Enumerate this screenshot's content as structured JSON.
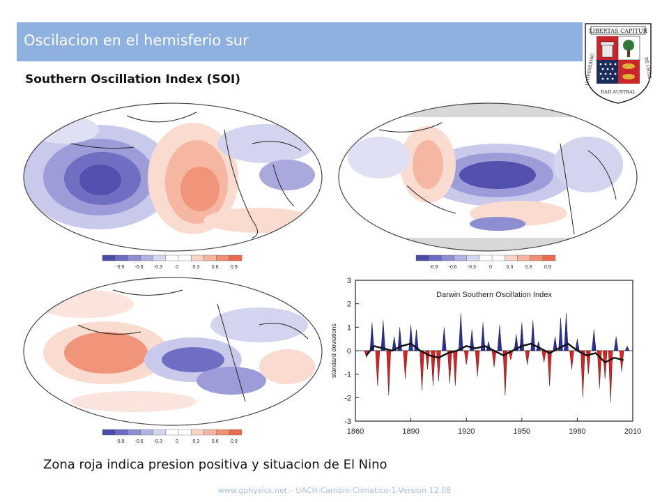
{
  "slide": {
    "title": "Oscilacion en el hemisferio sur",
    "subtitle": "Southern Oscillation Index (SOI)",
    "caption": "Zona roja indica presion positiva y situacion de El Nino",
    "footer": "www.gphysics.net – UACH-Cambio-Climatico-1-Version 12.08"
  },
  "logo": {
    "motto": "LIBERTAS CAPITUR",
    "ring_left": "UNIVERSIDAD",
    "ring_bottom": "DAD AUSTRAL",
    "ring_right": "DE CHILE",
    "colors": {
      "red": "#c8262b",
      "navy": "#1d2a5c",
      "green": "#2f7a3a",
      "gold": "#e0b23a"
    }
  },
  "colorbar": {
    "labels": [
      "-0.9",
      "-0.6",
      "-0.3",
      "0",
      "0.3",
      "0.6",
      "0.9"
    ],
    "colors": [
      "#4a4aa8",
      "#6b6bc0",
      "#8d8dd2",
      "#b2b2e2",
      "#d6d6f0",
      "#ffffff",
      "#ffffff",
      "#f9d3c4",
      "#f5b3a0",
      "#ef8f74",
      "#e86a4e"
    ]
  },
  "maps": [
    {
      "id": "map-correlation-1",
      "pattern": "west-blue-east-red"
    },
    {
      "id": "map-correlation-2",
      "pattern": "central-pacific-blue"
    },
    {
      "id": "map-correlation-3",
      "pattern": "mixed-red-blue"
    }
  ],
  "chart_data": {
    "type": "bar",
    "title": "Darwin Southern Oscillation Index",
    "ylabel": "standard deviations",
    "xlabel": "",
    "xlim": [
      1860,
      2010
    ],
    "ylim": [
      -3,
      3
    ],
    "xticks": [
      "1860",
      "1890",
      "1920",
      "1950",
      "1980",
      "2010"
    ],
    "yticks": [
      "3",
      "2",
      "1",
      "0",
      "-1",
      "-2",
      "-3"
    ],
    "colors": {
      "positive": "#2b2f9e",
      "negative": "#e02020",
      "smooth": "#111111"
    },
    "series": [
      {
        "name": "",
        "x": [
          1866,
          1869,
          1872,
          1875,
          1878,
          1881,
          1884,
          1887,
          1890,
          1893,
          1896,
          1899,
          1902,
          1905,
          1908,
          1911,
          1914,
          1917,
          1920,
          1923,
          1926,
          1929,
          1932,
          1935,
          1938,
          1941,
          1944,
          1947,
          1950,
          1953,
          1956,
          1959,
          1962,
          1965,
          1968,
          1971,
          1974,
          1977,
          1980,
          1983,
          1986,
          1989,
          1992,
          1995,
          1998,
          2001,
          2004,
          2007
        ],
        "values": [
          -0.3,
          1.2,
          -1.5,
          1.3,
          -1.9,
          0.6,
          1.0,
          -1.2,
          1.1,
          0.9,
          -1.7,
          -0.8,
          -1.5,
          -1.3,
          1.0,
          -1.4,
          -1.5,
          1.6,
          -0.6,
          0.9,
          -1.1,
          1.2,
          0.4,
          -0.7,
          1.1,
          -1.9,
          -0.4,
          0.7,
          1.2,
          -0.6,
          1.3,
          0.4,
          -0.5,
          -1.5,
          0.6,
          1.4,
          1.6,
          -0.8,
          0.5,
          -2.0,
          -1.0,
          0.9,
          -1.6,
          -1.2,
          -2.2,
          0.6,
          -0.9,
          0.2
        ]
      },
      {
        "name": "",
        "x": [
          1866,
          1870,
          1875,
          1880,
          1885,
          1890,
          1895,
          1900,
          1905,
          1910,
          1915,
          1920,
          1925,
          1930,
          1935,
          1940,
          1945,
          1950,
          1955,
          1960,
          1965,
          1970,
          1975,
          1980,
          1985,
          1990,
          1995,
          2000,
          2005
        ],
        "values": [
          -0.2,
          0.2,
          0.1,
          0.0,
          0.2,
          0.3,
          0.0,
          -0.2,
          -0.3,
          -0.1,
          0.0,
          0.2,
          0.1,
          0.2,
          0.0,
          -0.2,
          0.0,
          0.2,
          0.3,
          0.1,
          -0.1,
          0.1,
          0.3,
          0.0,
          -0.2,
          -0.1,
          -0.5,
          -0.3,
          -0.4
        ]
      }
    ]
  }
}
